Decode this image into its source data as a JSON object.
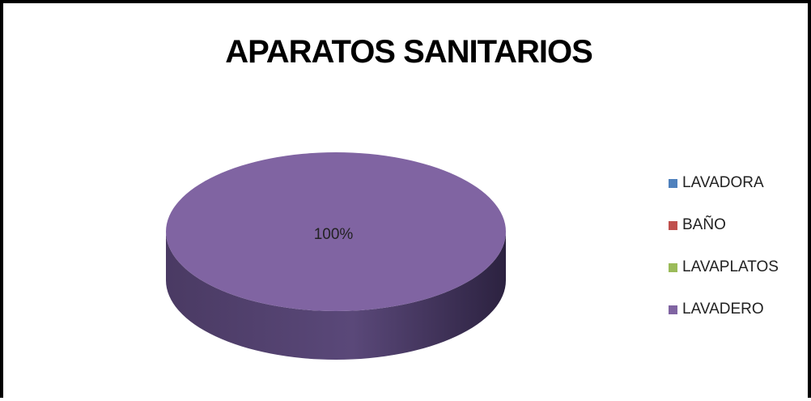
{
  "chart_data": {
    "type": "pie",
    "title": "APARATOS SANITARIOS",
    "categories": [
      "LAVADORA",
      "BAÑO",
      "LAVAPLATOS",
      "LAVADERO"
    ],
    "values": [
      0,
      0,
      0,
      100
    ],
    "data_labels": [
      "",
      "",
      "",
      "100%"
    ],
    "colors": [
      "#4f81bd",
      "#c0504d",
      "#9bbb59",
      "#8064a2"
    ],
    "style": "3d-pie",
    "legend_position": "right"
  }
}
